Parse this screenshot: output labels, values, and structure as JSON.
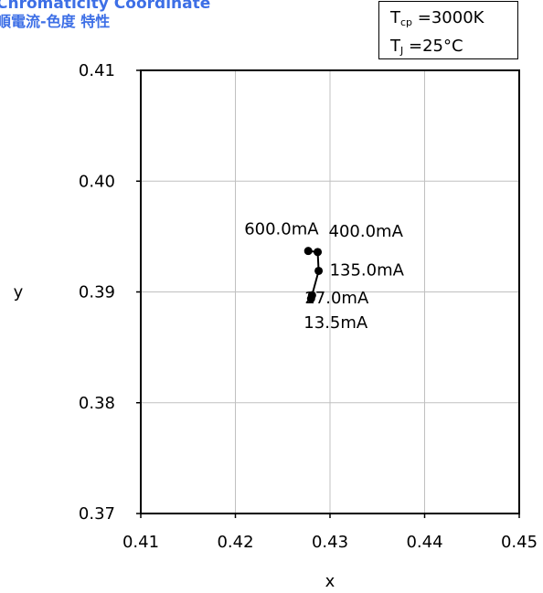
{
  "title": {
    "line1": "Chromaticity Coordinate",
    "line2": "順電流-色度 特性"
  },
  "conditions": {
    "tcp_symbol": "T",
    "tcp_sub": "cp",
    "tcp_value": "=3000K",
    "tj_symbol": "T",
    "tj_sub": "J",
    "tj_value": "=25°C"
  },
  "colors": {
    "title": "#3d6fe6",
    "grid": "#c0c0c0",
    "axis": "#000000",
    "series": "#000000"
  },
  "chart_data": {
    "type": "scatter",
    "xlabel": "x",
    "ylabel": "y",
    "xlim": [
      0.41,
      0.45
    ],
    "ylim": [
      0.37,
      0.41
    ],
    "xticks": [
      "0.41",
      "0.42",
      "0.43",
      "0.44",
      "0.45"
    ],
    "yticks": [
      "0.37",
      "0.38",
      "0.39",
      "0.40",
      "0.41"
    ],
    "grid": true,
    "series": [
      {
        "points": [
          {
            "x": 0.428,
            "y": 0.3894,
            "label": "13.5mA"
          },
          {
            "x": 0.4281,
            "y": 0.3897,
            "label": "27.0mA"
          },
          {
            "x": 0.4288,
            "y": 0.3919,
            "label": "135.0mA"
          },
          {
            "x": 0.4287,
            "y": 0.3936,
            "label": "400.0mA"
          },
          {
            "x": 0.4277,
            "y": 0.3937,
            "label": "600.0mA"
          }
        ]
      }
    ]
  }
}
